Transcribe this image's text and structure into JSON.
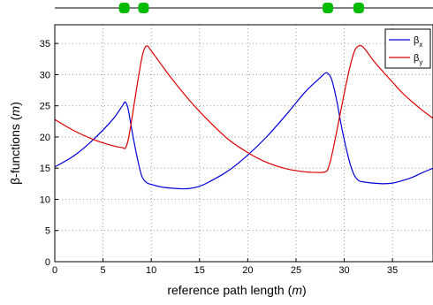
{
  "chart_data": {
    "type": "line",
    "title": "",
    "xlabel": "reference path length",
    "xlabel_unit": "m",
    "ylabel": "β-functions",
    "ylabel_unit": "m",
    "xlim": [
      0,
      39.2
    ],
    "ylim": [
      0,
      38
    ],
    "xticks": [
      "0",
      "5",
      "10",
      "15",
      "20",
      "25",
      "30",
      "35"
    ],
    "yticks": [
      "0",
      "5",
      "10",
      "15",
      "20",
      "25",
      "30",
      "35"
    ],
    "grid": true,
    "grid_style": "dotted",
    "legend_placement": "top-right",
    "legend": [
      {
        "name": "β",
        "subscript": "x",
        "color": "#0000dd"
      },
      {
        "name": "β",
        "subscript": "y",
        "color": "#dd0000"
      }
    ],
    "lattice": {
      "line_color": "#000000",
      "magnet_color": "#00bb00",
      "magnet_positions": [
        7.2,
        9.2,
        28.3,
        31.5
      ]
    },
    "series": [
      {
        "name": "βx",
        "color": "#0000dd",
        "x": [
          0,
          2,
          4,
          6,
          7.0,
          7.3,
          7.6,
          8.0,
          8.5,
          9.0,
          9.5,
          10.0,
          11,
          12,
          13,
          13.5,
          14,
          15,
          16,
          18,
          20,
          22,
          24,
          26,
          27.5,
          28.0,
          28.3,
          28.7,
          29.2,
          29.8,
          30.5,
          31.0,
          31.5,
          32,
          33,
          34,
          35,
          36,
          37,
          38,
          39.2
        ],
        "y": [
          15.2,
          17.0,
          19.6,
          22.8,
          25.0,
          25.6,
          24.5,
          21.0,
          17.0,
          13.8,
          12.7,
          12.4,
          12.0,
          11.8,
          11.7,
          11.7,
          11.75,
          12.1,
          12.8,
          14.6,
          17.1,
          20.1,
          23.6,
          27.3,
          29.5,
          30.2,
          30.2,
          29.2,
          26.0,
          21.0,
          16.3,
          14.0,
          13.0,
          12.8,
          12.6,
          12.5,
          12.6,
          13.0,
          13.5,
          14.2,
          15.0
        ]
      },
      {
        "name": "βy",
        "color": "#dd0000",
        "x": [
          0,
          2,
          4,
          6,
          7.0,
          7.3,
          7.6,
          8.0,
          8.5,
          9.0,
          9.3,
          9.6,
          10.0,
          11,
          12,
          14,
          16,
          18,
          20,
          22,
          24,
          26,
          27.5,
          28.0,
          28.3,
          28.7,
          29.3,
          30.0,
          30.6,
          31.1,
          31.5,
          31.8,
          32.2,
          33,
          34,
          35,
          36,
          37,
          38,
          39.2
        ],
        "y": [
          22.8,
          21.0,
          19.6,
          18.6,
          18.3,
          18.2,
          19.5,
          23.0,
          28.0,
          32.5,
          34.2,
          34.6,
          33.8,
          31.7,
          29.6,
          25.8,
          22.5,
          19.6,
          17.5,
          15.9,
          14.9,
          14.4,
          14.3,
          14.4,
          14.8,
          17.0,
          21.5,
          27.0,
          31.3,
          33.9,
          34.6,
          34.6,
          34.0,
          32.3,
          30.5,
          28.8,
          27.1,
          25.7,
          24.4,
          23.0
        ]
      }
    ]
  }
}
